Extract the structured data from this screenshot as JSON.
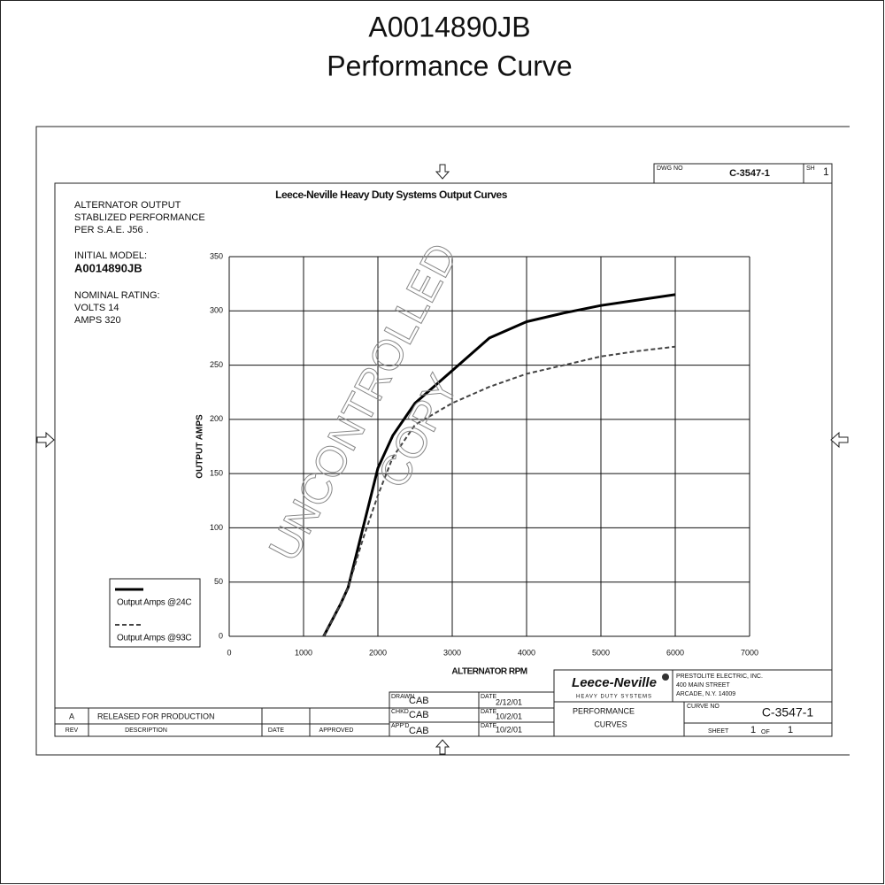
{
  "document": {
    "title": "A0014890JB",
    "subtitle": "Performance Curve",
    "notes": [
      "ALTERNATOR OUTPUT",
      "STABLIZED PERFORMANCE",
      "PER S.A.E. J56 .",
      "INITIAL MODEL:",
      "A0014890JB",
      "NOMINAL RATING:",
      "VOLTS 14",
      "AMPS 320"
    ],
    "watermark": [
      "UNCONTROLLED",
      "COPY"
    ],
    "top_block": {
      "dwg_label": "DWG NO",
      "dwg_no": "C-3547-1",
      "sh_label": "SH",
      "sh": "1"
    },
    "revision": {
      "rev": "A",
      "description": "RELEASED FOR PRODUCTION",
      "rev_label": "REV",
      "description_label": "DESCRIPTION",
      "date_label": "DATE",
      "approved_label": "APPROVED"
    },
    "signoff": [
      {
        "label": "DRAWN",
        "name": "CAB",
        "date_label": "DATE",
        "date": "2/12/01"
      },
      {
        "label": "CHKD",
        "name": "CAB",
        "date_label": "DATE",
        "date": "10/2/01"
      },
      {
        "label": "APP'D",
        "name": "CAB",
        "date_label": "DATE",
        "date": "10/2/01"
      }
    ],
    "company": {
      "logo": "Leece-Neville",
      "tagline": "HEAVY DUTY SYSTEMS",
      "lines": [
        "PRESTOLITE ELECTRIC, INC.",
        "400 MAIN STREET",
        "ARCADE, N.Y. 14009"
      ]
    },
    "block_title": [
      "PERFORMANCE",
      "CURVES"
    ],
    "curve_no_label": "CURVE NO",
    "curve_no": "C-3547-1",
    "sheet": {
      "label": "SHEET",
      "number": "1",
      "of_label": "OF",
      "total": "1"
    }
  },
  "chart_data": {
    "type": "line",
    "title": "Leece-Neville Heavy Duty Systems Output Curves",
    "x_label": "ALTERNATOR RPM",
    "y_label": "OUTPUT AMPS",
    "x": [
      1270,
      1500,
      1600,
      1800,
      2000,
      2200,
      2500,
      3000,
      3500,
      4000,
      4500,
      5000,
      5500,
      6000
    ],
    "series": [
      {
        "name": "Output Amps @24C",
        "color": "#000000",
        "style": "solid",
        "values": [
          0,
          30,
          45,
          100,
          155,
          185,
          215,
          245,
          275,
          290,
          298,
          305,
          310,
          315
        ]
      },
      {
        "name": "Output Amps @93C",
        "color": "#444444",
        "style": "dashed",
        "values": [
          0,
          30,
          45,
          90,
          130,
          165,
          195,
          215,
          230,
          242,
          250,
          258,
          263,
          267
        ]
      }
    ],
    "xlim": [
      0,
      7000
    ],
    "ylim": [
      0,
      350
    ],
    "xticks": [
      0,
      1000,
      2000,
      3000,
      4000,
      5000,
      6000,
      7000
    ],
    "yticks": [
      0,
      50,
      100,
      150,
      200,
      250,
      300,
      350
    ],
    "grid": true,
    "legend": "lower left"
  }
}
